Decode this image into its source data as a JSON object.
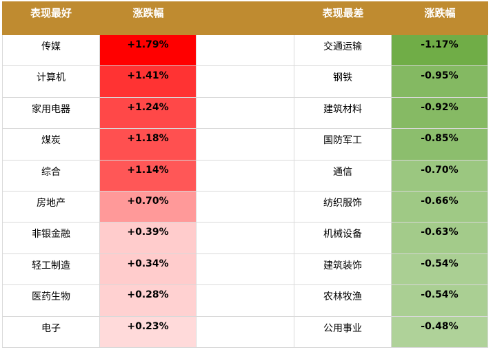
{
  "header": {
    "best": "表现最好",
    "best_change": "涨跌幅",
    "worst": "表现最差",
    "worst_change": "涨跌幅",
    "color": "#bf8b30"
  },
  "rows": [
    {
      "best": "传媒",
      "best_change": "+1.79%",
      "best_color": "#ff0000",
      "worst": "交通运输",
      "worst_change": "-1.17%",
      "worst_color": "#70ad47"
    },
    {
      "best": "计算机",
      "best_change": "+1.41%",
      "best_color": "#ff3333",
      "worst": "钢铁",
      "worst_change": "-0.95%",
      "worst_color": "#84b962"
    },
    {
      "best": "家用电器",
      "best_change": "+1.24%",
      "best_color": "#ff4848",
      "worst": "建筑材料",
      "worst_change": "-0.92%",
      "worst_color": "#86ba64"
    },
    {
      "best": "煤炭",
      "best_change": "+1.18%",
      "best_color": "#ff5050",
      "worst": "国防军工",
      "worst_change": "-0.85%",
      "worst_color": "#8cbe6d"
    },
    {
      "best": "综合",
      "best_change": "+1.14%",
      "best_color": "#ff5757",
      "worst": "通信",
      "worst_change": "-0.70%",
      "worst_color": "#9bc780"
    },
    {
      "best": "房地产",
      "best_change": "+0.70%",
      "best_color": "#ff9999",
      "worst": "纺织服饰",
      "worst_change": "-0.66%",
      "worst_color": "#9fc985"
    },
    {
      "best": "非银金融",
      "best_change": "+0.39%",
      "best_color": "#ffcccc",
      "worst": "机械设备",
      "worst_change": "-0.63%",
      "worst_color": "#a3cb8a"
    },
    {
      "best": "轻工制造",
      "best_change": "+0.34%",
      "best_color": "#ffcccc",
      "worst": "建筑装饰",
      "worst_change": "-0.54%",
      "worst_color": "#aacf93"
    },
    {
      "best": "医药生物",
      "best_change": "+0.28%",
      "best_color": "#ffd1d1",
      "worst": "农林牧渔",
      "worst_change": "-0.54%",
      "worst_color": "#aacf93"
    },
    {
      "best": "电子",
      "best_change": "+0.23%",
      "best_color": "#ffdada",
      "worst": "公用事业",
      "worst_change": "-0.48%",
      "worst_color": "#afd299"
    }
  ]
}
